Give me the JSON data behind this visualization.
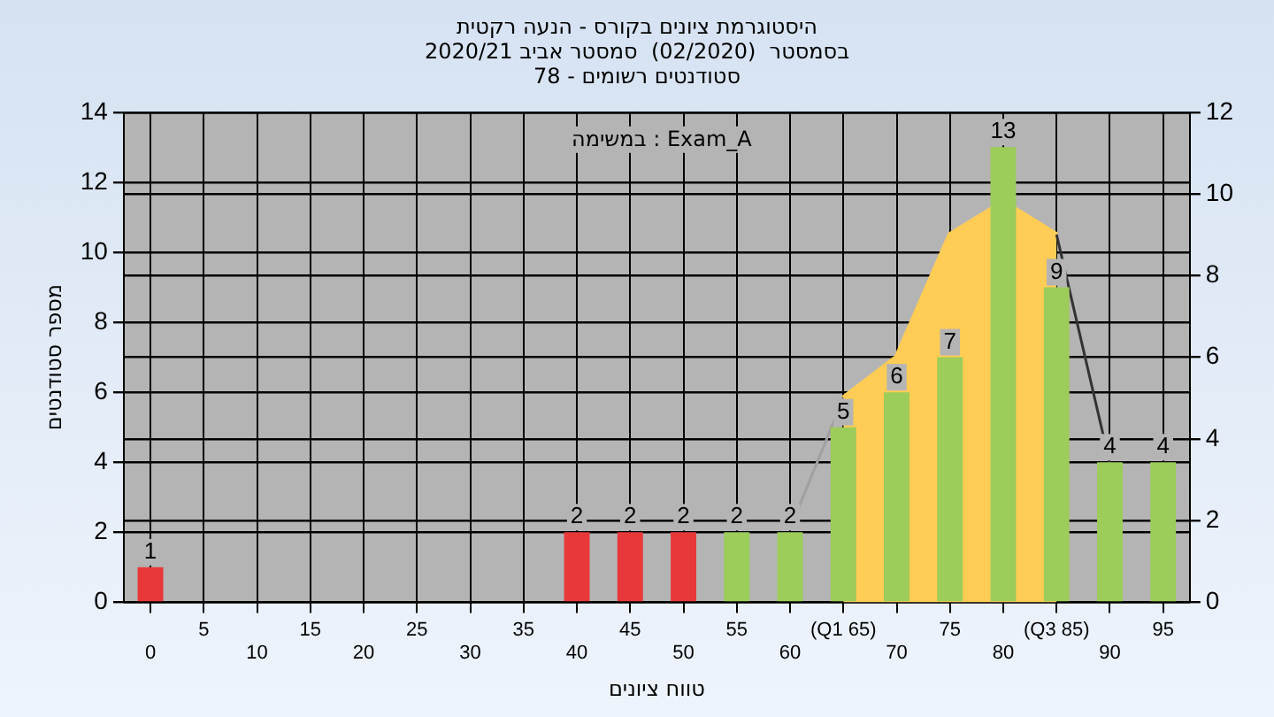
{
  "chart_data": {
    "type": "bar",
    "title": "היסטוגרמת ציונים בקורס - הנעה רקטית",
    "subtitle": "בסמסטר  (02/2020)  סמסטר אביב 2020/21\nסטודנטים רשומים - 78",
    "xlabel": "טווח ציונים",
    "ylabel": "מספר סטודנטים",
    "annotations": [
      "במשימה : Exam_A"
    ],
    "categories": [
      "0",
      "5",
      "10",
      "15",
      "20",
      "25",
      "30",
      "35",
      "40",
      "45",
      "50",
      "55",
      "60",
      "(Q1 65)",
      "70",
      "75",
      "80",
      "(Q3 85)",
      "90",
      "95"
    ],
    "series": [
      {
        "colors": [
          "#e8383a",
          "#e8383a",
          "#e8383a",
          "#e8383a",
          "#e8383a",
          "#e8383a",
          "#e8383a",
          "#e8383a",
          "#e8383a",
          "#e8383a",
          "#e8383a",
          "#9ccc5a",
          "#9ccc5a",
          "#9ccc5a",
          "#9ccc5a",
          "#9ccc5a",
          "#9ccc5a",
          "#9ccc5a",
          "#9ccc5a",
          "#9ccc5a"
        ],
        "values": [
          1,
          0,
          0,
          0,
          0,
          0,
          0,
          0,
          2,
          2,
          2,
          2,
          2,
          5,
          6,
          7,
          13,
          9,
          4,
          4
        ],
        "value_labels": [
          "1",
          null,
          null,
          null,
          null,
          null,
          null,
          null,
          "2",
          "2",
          "2",
          "2",
          "2",
          "5",
          "6",
          "7",
          "13",
          "9",
          "4",
          "4"
        ]
      },
      {
        "type": "area",
        "axis": "y2",
        "color": "#ffcc55",
        "values": [
          null,
          null,
          null,
          null,
          null,
          null,
          null,
          null,
          null,
          null,
          null,
          null,
          null,
          5,
          6,
          9,
          9.8,
          9,
          null,
          null
        ]
      },
      {
        "type": "line",
        "axis": "y2",
        "color": "#333333",
        "values": [
          null,
          null,
          null,
          null,
          null,
          null,
          null,
          null,
          null,
          null,
          null,
          null,
          null,
          null,
          null,
          null,
          null,
          9,
          3.4,
          null
        ]
      },
      {
        "type": "line",
        "axis": "y2",
        "color": "#a0a0a0",
        "values": [
          null,
          null,
          null,
          null,
          null,
          null,
          null,
          null,
          null,
          null,
          null,
          null,
          1.8,
          5,
          null,
          null,
          null,
          null,
          null,
          null
        ]
      }
    ],
    "ylim": [
      0,
      14
    ],
    "yticks": [
      0,
      2,
      4,
      6,
      8,
      10,
      12,
      14
    ],
    "y2lim": [
      0,
      12
    ],
    "y2ticks": [
      0,
      2,
      4,
      6,
      8,
      10,
      12
    ],
    "grid": true,
    "legend": false
  }
}
